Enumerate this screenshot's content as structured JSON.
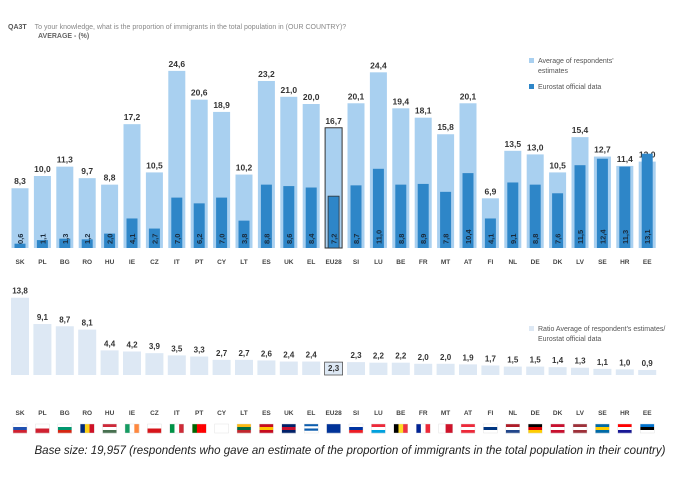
{
  "header": {
    "code": "QA3T",
    "question": "To your knowledge, what is the proportion of immigrants in the total population in (OUR COUNTRY)?",
    "subtitle": "AVERAGE - (%)"
  },
  "chart_data": [
    {
      "type": "bar",
      "title": "",
      "categories": [
        "SK",
        "PL",
        "BG",
        "RO",
        "HU",
        "IE",
        "CZ",
        "IT",
        "PT",
        "CY",
        "LT",
        "ES",
        "UK",
        "EL",
        "EU28",
        "SI",
        "LU",
        "BE",
        "FR",
        "MT",
        "AT",
        "FI",
        "NL",
        "DE",
        "DK",
        "LV",
        "SE",
        "HR",
        "EE"
      ],
      "highlight": "EU28",
      "legend": "top-right",
      "series": [
        {
          "name": "Average of respondents' estimates",
          "color": "#a9d0f0",
          "values": [
            8.3,
            10.0,
            11.3,
            9.7,
            8.8,
            17.2,
            10.5,
            24.6,
            20.6,
            18.9,
            10.2,
            23.2,
            21.0,
            20.0,
            16.7,
            20.1,
            24.4,
            19.4,
            18.1,
            15.8,
            20.1,
            6.9,
            13.5,
            13.0,
            10.5,
            15.4,
            12.7,
            11.4,
            12.0
          ],
          "labels": [
            "8,3",
            "10,0",
            "11,3",
            "9,7",
            "8,8",
            "17,2",
            "10,5",
            "24,6",
            "20,6",
            "18,9",
            "10,2",
            "23,2",
            "21,0",
            "20,0",
            "16,7",
            "20,1",
            "24,4",
            "19,4",
            "18,1",
            "15,8",
            "20,1",
            "6,9",
            "13,5",
            "13,0",
            "10,5",
            "15,4",
            "12,7",
            "11,4",
            "12,0"
          ]
        },
        {
          "name": "Eurostat official data",
          "color": "#2e86c8",
          "values": [
            0.6,
            1.1,
            1.3,
            1.2,
            2.0,
            4.1,
            2.7,
            7.0,
            6.2,
            7.0,
            3.8,
            8.8,
            8.6,
            8.4,
            7.2,
            8.7,
            11.0,
            8.8,
            8.9,
            7.8,
            10.4,
            4.1,
            9.1,
            8.8,
            7.6,
            11.5,
            12.4,
            11.3,
            13.1
          ],
          "labels": [
            "0,6",
            "1,1",
            "1,3",
            "1,2",
            "2,0",
            "4,1",
            "2,7",
            "7,0",
            "6,2",
            "7,0",
            "3,8",
            "8,8",
            "8,6",
            "8,4",
            "7,2",
            "8,7",
            "11,0",
            "8,8",
            "8,9",
            "7,8",
            "10,4",
            "4,1",
            "9,1",
            "8,8",
            "7,6",
            "11,5",
            "12,4",
            "11,3",
            "13,1"
          ]
        }
      ]
    },
    {
      "type": "bar",
      "title": "",
      "categories": [
        "SK",
        "PL",
        "BG",
        "RO",
        "HU",
        "IE",
        "CZ",
        "IT",
        "PT",
        "CY",
        "LT",
        "ES",
        "UK",
        "EL",
        "EU28",
        "SI",
        "LU",
        "BE",
        "FR",
        "MT",
        "AT",
        "FI",
        "NL",
        "DE",
        "DK",
        "LV",
        "SE",
        "HR",
        "EE"
      ],
      "highlight": "EU28",
      "legend": "right",
      "series": [
        {
          "name": "Ratio Average of respondent's estimates/Eurostat official data",
          "color": "#dde8f4",
          "values": [
            13.8,
            9.1,
            8.7,
            8.1,
            4.4,
            4.2,
            3.9,
            3.5,
            3.3,
            2.7,
            2.7,
            2.6,
            2.4,
            2.4,
            2.3,
            2.3,
            2.2,
            2.2,
            2.0,
            2.0,
            1.9,
            1.7,
            1.5,
            1.5,
            1.4,
            1.3,
            1.1,
            1.0,
            0.9
          ],
          "labels": [
            "13,8",
            "9,1",
            "8,7",
            "8,1",
            "4,4",
            "4,2",
            "3,9",
            "3,5",
            "3,3",
            "2,7",
            "2,7",
            "2,6",
            "2,4",
            "2,4",
            "2,3",
            "2,3",
            "2,2",
            "2,2",
            "2,0",
            "2,0",
            "1,9",
            "1,7",
            "1,5",
            "1,5",
            "1,4",
            "1,3",
            "1,1",
            "1,0",
            "0,9"
          ]
        }
      ]
    }
  ],
  "flags": [
    [
      "h",
      "#fff",
      "#2050b0",
      "#d02030"
    ],
    [
      "h",
      "#fff",
      "#d02030"
    ],
    [
      "h",
      "#fff",
      "#00966e",
      "#d62612"
    ],
    [
      "v",
      "#002b7f",
      "#fcd116",
      "#ce1126"
    ],
    [
      "h",
      "#ce2939",
      "#fff",
      "#477050"
    ],
    [
      "v",
      "#169b62",
      "#fff",
      "#ff883e"
    ],
    [
      "h",
      "#fff",
      "#d7141a"
    ],
    [
      "v",
      "#009246",
      "#fff",
      "#ce2b37"
    ],
    [
      "v",
      "#006600",
      "#ff0000",
      "#ff0000"
    ],
    [
      "h",
      "#fff",
      "#fff"
    ],
    [
      "h",
      "#fdb913",
      "#006a44",
      "#c1272d"
    ],
    [
      "h",
      "#c60b1e",
      "#ffc400",
      "#c60b1e"
    ],
    [
      "h",
      "#012169",
      "#c8102e",
      "#012169"
    ],
    [
      "h",
      "#0d5eaf",
      "#fff",
      "#0d5eaf",
      "#fff"
    ],
    [
      "h",
      "#003399",
      "#003399"
    ],
    [
      "h",
      "#fff",
      "#0033a0",
      "#ed1c24"
    ],
    [
      "h",
      "#ed2939",
      "#fff",
      "#00a1de"
    ],
    [
      "v",
      "#000",
      "#fdda24",
      "#ef3340"
    ],
    [
      "v",
      "#002395",
      "#fff",
      "#ed2939"
    ],
    [
      "v",
      "#fff",
      "#cf142b"
    ],
    [
      "h",
      "#ed2939",
      "#fff",
      "#ed2939"
    ],
    [
      "h",
      "#fff",
      "#003580",
      "#fff"
    ],
    [
      "h",
      "#ae1c28",
      "#fff",
      "#21468b"
    ],
    [
      "h",
      "#000",
      "#dd0000",
      "#ffce00"
    ],
    [
      "h",
      "#c8102e",
      "#fff",
      "#c8102e"
    ],
    [
      "h",
      "#9e3039",
      "#fff",
      "#9e3039"
    ],
    [
      "h",
      "#006aa7",
      "#fecc00",
      "#006aa7"
    ],
    [
      "h",
      "#ff0000",
      "#fff",
      "#171796"
    ],
    [
      "h",
      "#0072ce",
      "#000",
      "#fff"
    ]
  ],
  "footer": "Base size: 19,957 (respondents who gave an estimate of the proportion of immigrants in the total population in their country)"
}
